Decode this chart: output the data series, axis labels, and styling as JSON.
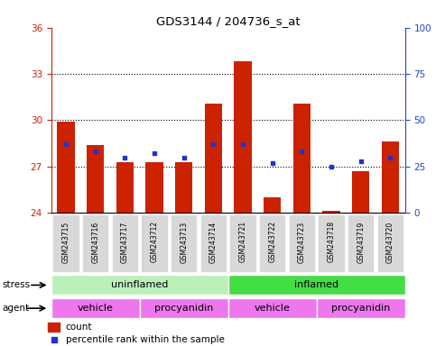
{
  "title": "GDS3144 / 204736_s_at",
  "samples": [
    "GSM243715",
    "GSM243716",
    "GSM243717",
    "GSM243712",
    "GSM243713",
    "GSM243714",
    "GSM243721",
    "GSM243722",
    "GSM243723",
    "GSM243718",
    "GSM243719",
    "GSM243720"
  ],
  "count_values": [
    29.9,
    28.4,
    27.3,
    27.3,
    27.3,
    31.1,
    33.8,
    25.0,
    31.1,
    24.1,
    26.7,
    28.6
  ],
  "percentile_values": [
    37,
    33,
    30,
    32,
    30,
    37,
    37,
    27,
    33,
    25,
    28,
    30
  ],
  "ylim_left": [
    24,
    36
  ],
  "ylim_right": [
    0,
    100
  ],
  "yticks_left": [
    24,
    27,
    30,
    33,
    36
  ],
  "yticks_right": [
    0,
    25,
    50,
    75,
    100
  ],
  "bar_color": "#cc2200",
  "dot_color": "#2233cc",
  "uninflamed_color": "#bbf0bb",
  "inflamed_color": "#44dd44",
  "agent_color": "#ee77ee",
  "legend_count": "count",
  "legend_percentile": "percentile rank within the sample",
  "stress_label": "stress",
  "agent_label": "agent",
  "bg_color": "#ffffff",
  "tick_bg": "#d8d8d8"
}
